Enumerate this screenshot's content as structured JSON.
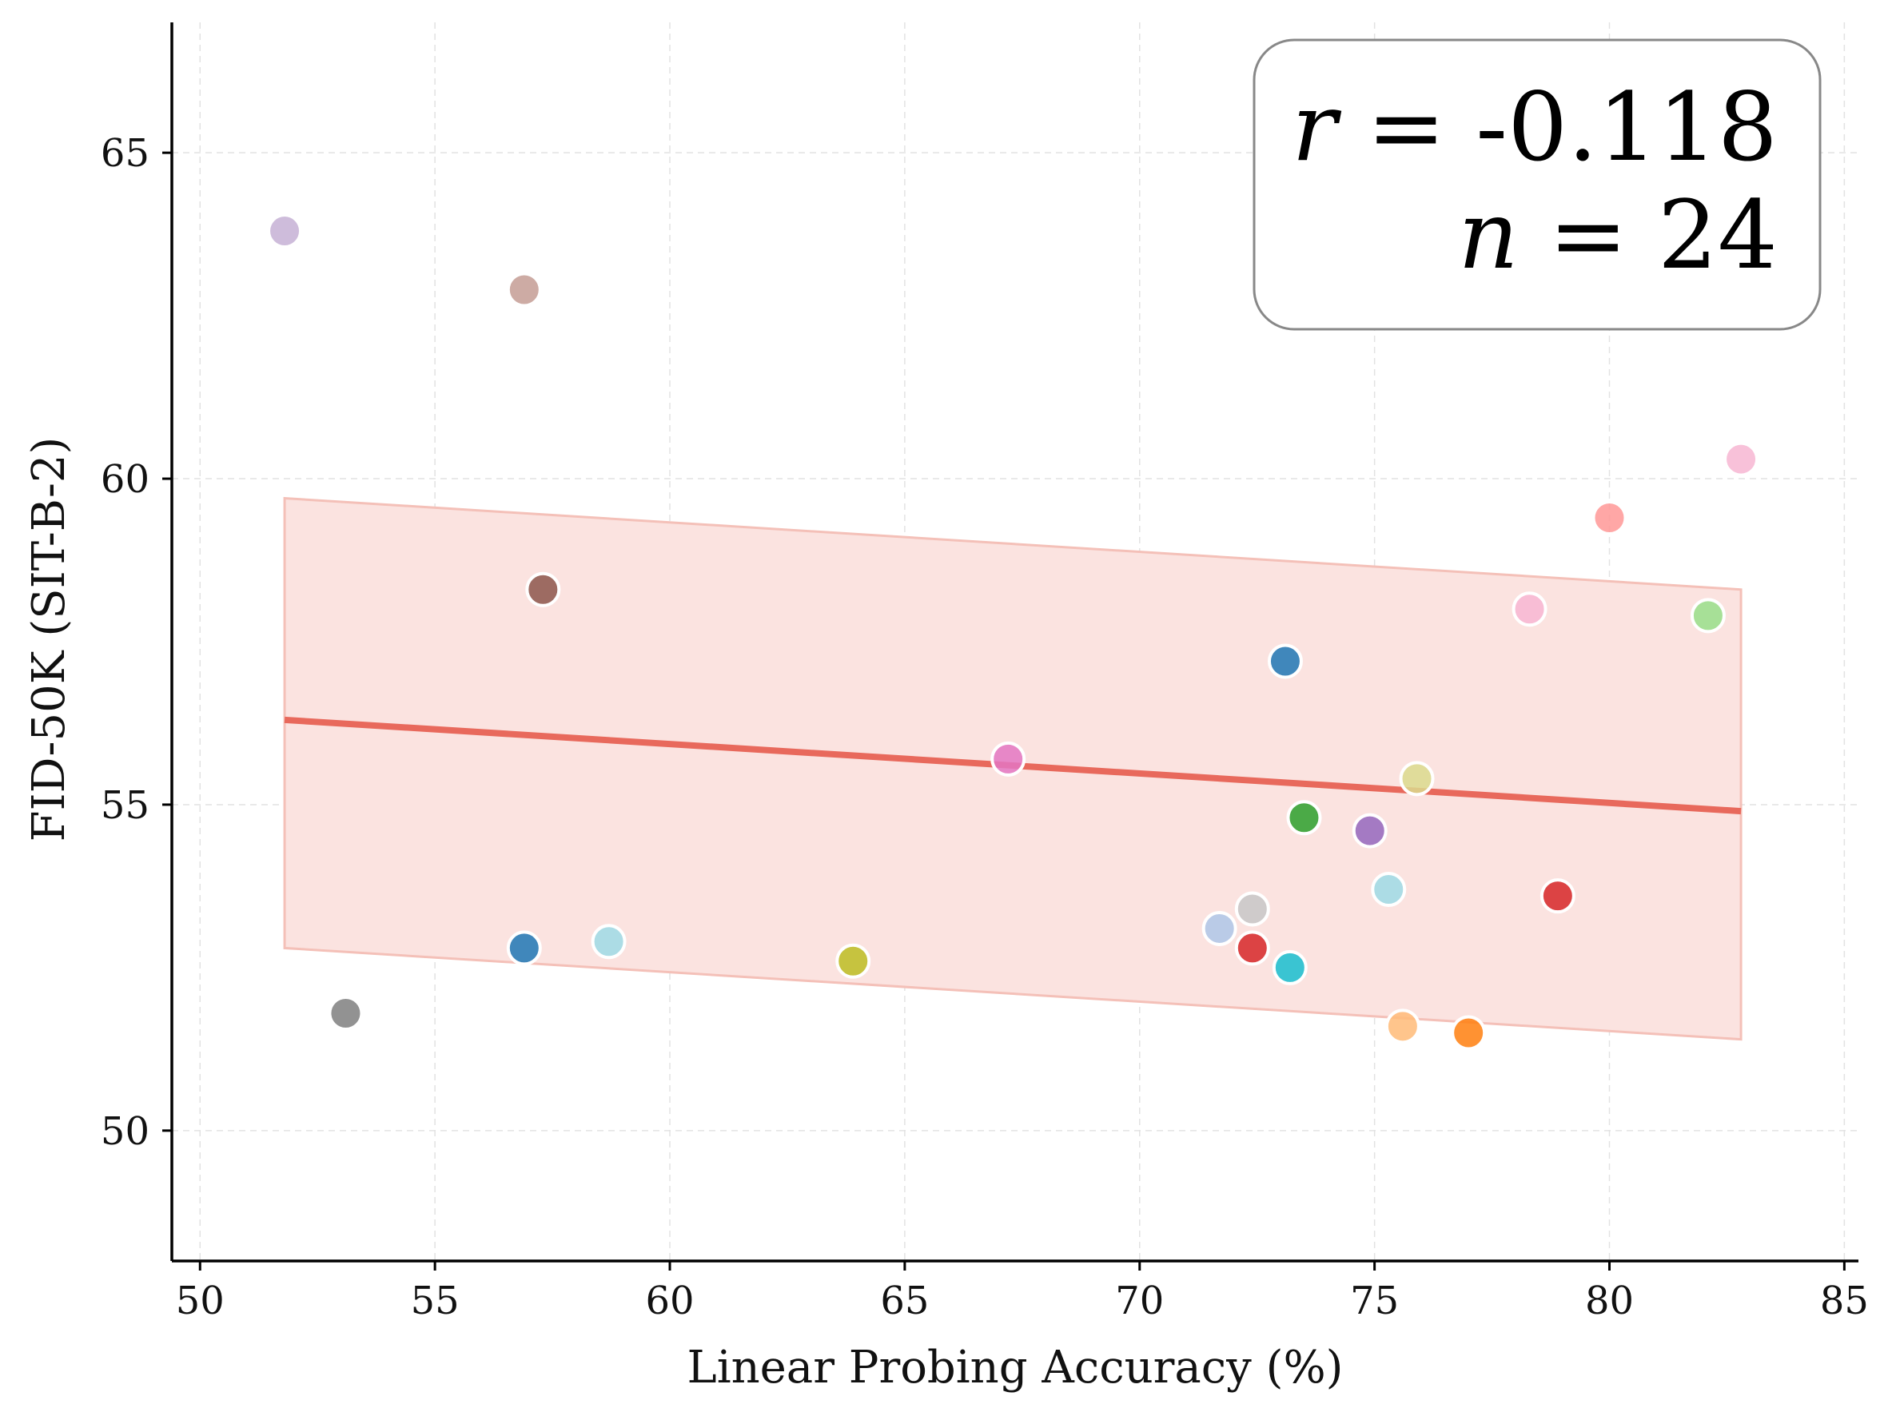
{
  "chart_data": {
    "type": "scatter",
    "xlabel": "Linear Probing Accuracy (%)",
    "ylabel": "FID-50K (SIT-B-2)",
    "xlim": [
      49.4,
      85.3
    ],
    "ylim": [
      48.0,
      67.0
    ],
    "xticks": [
      50,
      55,
      60,
      65,
      70,
      75,
      80,
      85
    ],
    "yticks": [
      50,
      55,
      60,
      65
    ],
    "grid": true,
    "points": [
      {
        "x": 51.8,
        "y": 63.8,
        "color": "#c5b0d5"
      },
      {
        "x": 56.9,
        "y": 62.9,
        "color": "#c49c94"
      },
      {
        "x": 57.3,
        "y": 58.3,
        "color": "#8c564b"
      },
      {
        "x": 82.8,
        "y": 60.3,
        "color": "#f7b6d2"
      },
      {
        "x": 80.0,
        "y": 59.4,
        "color": "#ff9896"
      },
      {
        "x": 78.3,
        "y": 58.0,
        "color": "#f7b6d2"
      },
      {
        "x": 82.1,
        "y": 57.9,
        "color": "#98df8a"
      },
      {
        "x": 73.1,
        "y": 57.2,
        "color": "#1f77b4"
      },
      {
        "x": 67.2,
        "y": 55.7,
        "color": "#e377c2"
      },
      {
        "x": 75.9,
        "y": 55.4,
        "color": "#dbdb8d"
      },
      {
        "x": 73.5,
        "y": 54.8,
        "color": "#2ca02c"
      },
      {
        "x": 74.9,
        "y": 54.6,
        "color": "#9467bd"
      },
      {
        "x": 75.3,
        "y": 53.7,
        "color": "#9edae5"
      },
      {
        "x": 78.9,
        "y": 53.6,
        "color": "#d62728"
      },
      {
        "x": 72.4,
        "y": 53.4,
        "color": "#c7c7c7"
      },
      {
        "x": 71.7,
        "y": 53.1,
        "color": "#aec7e8"
      },
      {
        "x": 56.9,
        "y": 52.8,
        "color": "#1f77b4"
      },
      {
        "x": 58.7,
        "y": 52.9,
        "color": "#9edae5"
      },
      {
        "x": 72.4,
        "y": 52.8,
        "color": "#d62728"
      },
      {
        "x": 73.2,
        "y": 52.5,
        "color": "#17becf"
      },
      {
        "x": 63.9,
        "y": 52.6,
        "color": "#bcbd22"
      },
      {
        "x": 53.1,
        "y": 51.8,
        "color": "#7f7f7f"
      },
      {
        "x": 75.6,
        "y": 51.6,
        "color": "#ffbb78"
      },
      {
        "x": 77.0,
        "y": 51.5,
        "color": "#ff7f0e"
      }
    ],
    "regression": {
      "x": [
        51.8,
        82.8
      ],
      "y": [
        56.3,
        54.9
      ],
      "color": "#e8695c"
    },
    "confidence_band": {
      "x": [
        51.8,
        82.8
      ],
      "upper": [
        59.7,
        58.3
      ],
      "lower": [
        52.8,
        51.4
      ],
      "color": "#fbe3e0"
    },
    "annotation": {
      "r_symbol": "r",
      "r_value": " = -0.118",
      "n_symbol": "n",
      "n_value": " = 24",
      "position": "top-right"
    }
  }
}
